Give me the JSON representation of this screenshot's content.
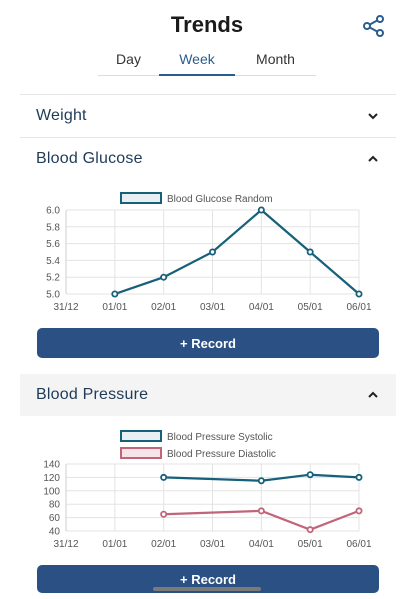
{
  "header": {
    "title": "Trends",
    "share_icon": "share-icon"
  },
  "tabs": [
    {
      "label": "Day",
      "active": false
    },
    {
      "label": "Week",
      "active": true
    },
    {
      "label": "Month",
      "active": false
    }
  ],
  "sections": {
    "weight": {
      "title": "Weight",
      "expanded": false
    },
    "glucose": {
      "title": "Blood Glucose",
      "expanded": true,
      "record_label": "+ Record"
    },
    "pressure": {
      "title": "Blood Pressure",
      "expanded": true,
      "record_label": "+ Record"
    }
  },
  "colors": {
    "accent": "#2a5d8f",
    "button": "#2b5184",
    "series_teal": "#16607a",
    "series_pink": "#c0657a"
  },
  "chart_data": [
    {
      "type": "line",
      "categories": [
        "31/12",
        "01/01",
        "02/01",
        "03/01",
        "04/01",
        "05/01",
        "06/01"
      ],
      "series": [
        {
          "name": "Blood Glucose Random",
          "values": [
            null,
            5.0,
            5.2,
            5.5,
            6.0,
            5.5,
            5.0
          ]
        }
      ],
      "yticks": [
        "5.0",
        "5.2",
        "5.4",
        "5.6",
        "5.8",
        "6.0"
      ],
      "ylim": [
        5.0,
        6.0
      ],
      "legend": "top"
    },
    {
      "type": "line",
      "categories": [
        "31/12",
        "01/01",
        "02/01",
        "03/01",
        "04/01",
        "05/01",
        "06/01"
      ],
      "series": [
        {
          "name": "Blood Pressure Systolic",
          "values": [
            null,
            null,
            120,
            null,
            115,
            124,
            120
          ]
        },
        {
          "name": "Blood Pressure Diastolic",
          "values": [
            null,
            null,
            65,
            null,
            70,
            42,
            70
          ]
        }
      ],
      "yticks": [
        "40",
        "60",
        "80",
        "100",
        "120",
        "140"
      ],
      "ylim": [
        40,
        140
      ],
      "legend": "top"
    }
  ]
}
